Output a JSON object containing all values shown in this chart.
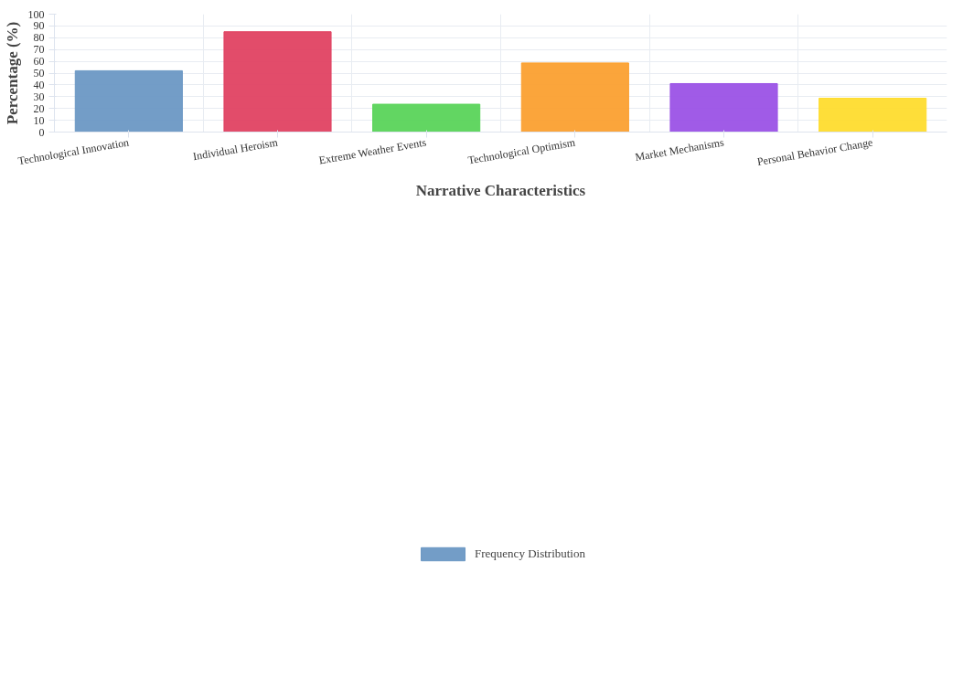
{
  "chart_data": {
    "type": "bar",
    "xlabel": "Narrative Characteristics",
    "ylabel": "Percentage (%)",
    "categories": [
      "Technological Innovation",
      "Individual Heroism",
      "Extreme Weather Events",
      "Technological Optimism",
      "Market Mechanisms",
      "Personal Behavior Change"
    ],
    "series": [
      {
        "name": "Frequency Distribution",
        "colors": [
          "#6b98c4",
          "#e04262",
          "#5ad45a",
          "#fba030",
          "#9b52e6",
          "#fedc2e"
        ],
        "values": [
          52.0,
          85.1,
          23.6,
          58.6,
          41.1,
          28.7
        ]
      }
    ],
    "ylim": [
      0,
      100
    ],
    "yticks": [
      0,
      10,
      20,
      30,
      40,
      50,
      60,
      70,
      80,
      90,
      100
    ],
    "grid": true,
    "legend": "bottom"
  }
}
